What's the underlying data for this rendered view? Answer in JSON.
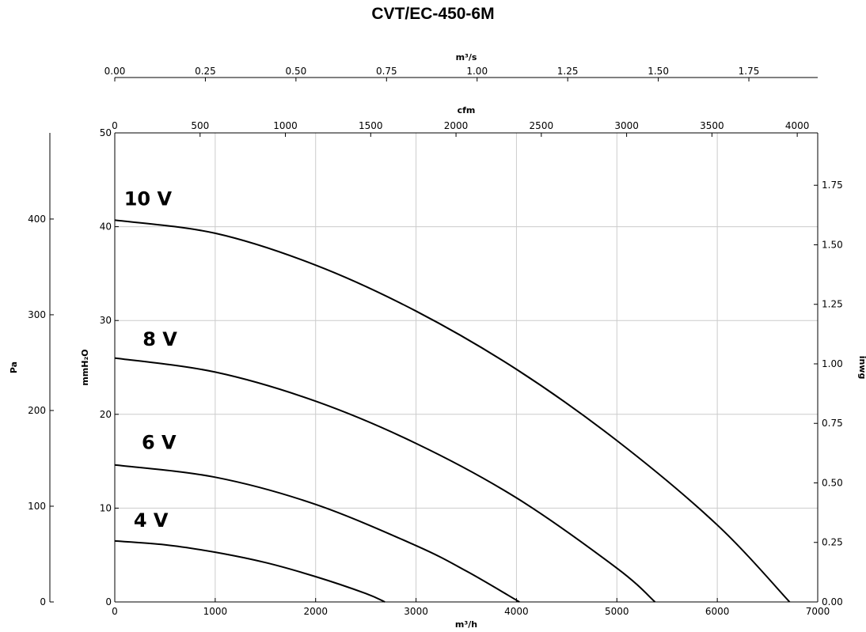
{
  "title": "CVT/EC-450-6M",
  "chart_data": {
    "type": "line",
    "title": "CVT/EC-450-6M",
    "axes": {
      "x_bottom": {
        "label": "m³/h",
        "range": [
          0,
          7000
        ],
        "ticks": [
          0,
          1000,
          2000,
          3000,
          4000,
          5000,
          6000,
          7000
        ],
        "tick_labels": [
          "0",
          "1000",
          "2000",
          "3000",
          "4000",
          "5000",
          "6000",
          "7000"
        ]
      },
      "x_top_cfm": {
        "label": "cfm",
        "range": [
          0,
          4120
        ],
        "ticks": [
          0,
          500,
          1000,
          1500,
          2000,
          2500,
          3000,
          3500,
          4000
        ],
        "tick_labels": [
          "0",
          "500",
          "1000",
          "1500",
          "2000",
          "2500",
          "3000",
          "3500",
          "4000"
        ]
      },
      "x_top_m3s": {
        "label": "m³/s",
        "range": [
          0,
          1.94
        ],
        "ticks": [
          0,
          0.25,
          0.5,
          0.75,
          1.0,
          1.25,
          1.5,
          1.75
        ],
        "tick_labels": [
          "0.00",
          "0.25",
          "0.50",
          "0.75",
          "1.00",
          "1.25",
          "1.50",
          "1.75"
        ]
      },
      "y_left_mmH2O": {
        "label": "mmH₂O",
        "range": [
          0,
          50
        ],
        "ticks": [
          0,
          10,
          20,
          30,
          40,
          50
        ],
        "tick_labels": [
          "0",
          "10",
          "20",
          "30",
          "40",
          "50"
        ]
      },
      "y_left_Pa": {
        "label": "Pa",
        "range": [
          0,
          490
        ],
        "ticks": [
          0,
          100,
          200,
          300,
          400
        ],
        "tick_labels": [
          "0",
          "100",
          "200",
          "300",
          "400"
        ]
      },
      "y_right_inwg": {
        "label": "inwg",
        "range": [
          0,
          1.97
        ],
        "ticks": [
          0,
          0.25,
          0.5,
          0.75,
          1.0,
          1.25,
          1.5,
          1.75
        ],
        "tick_labels": [
          "0.00",
          "0.25",
          "0.50",
          "0.75",
          "1.00",
          "1.25",
          "1.50",
          "1.75"
        ]
      }
    },
    "grid": true,
    "series": [
      {
        "name": "10 V",
        "label_at": [
          330,
          42.3
        ],
        "x": [
          0,
          1000,
          2000,
          3000,
          4000,
          5000,
          6000,
          6720
        ],
        "y": [
          40.7,
          39.3,
          35.9,
          31.0,
          24.8,
          17.2,
          8.2,
          0
        ]
      },
      {
        "name": "8 V",
        "label_at": [
          450,
          27.3
        ],
        "x": [
          0,
          1000,
          2000,
          3000,
          4000,
          5000,
          5380
        ],
        "y": [
          26.0,
          24.5,
          21.4,
          16.9,
          11.1,
          3.6,
          0
        ]
      },
      {
        "name": "6 V",
        "label_at": [
          440,
          16.3
        ],
        "x": [
          0,
          1000,
          2000,
          3000,
          3500,
          4030
        ],
        "y": [
          14.6,
          13.3,
          10.4,
          6.0,
          3.3,
          0
        ]
      },
      {
        "name": "4 V",
        "label_at": [
          360,
          8.0
        ],
        "x": [
          0,
          500,
          1000,
          1500,
          2000,
          2500,
          2690
        ],
        "y": [
          6.5,
          6.1,
          5.3,
          4.2,
          2.7,
          0.9,
          0
        ]
      }
    ]
  }
}
